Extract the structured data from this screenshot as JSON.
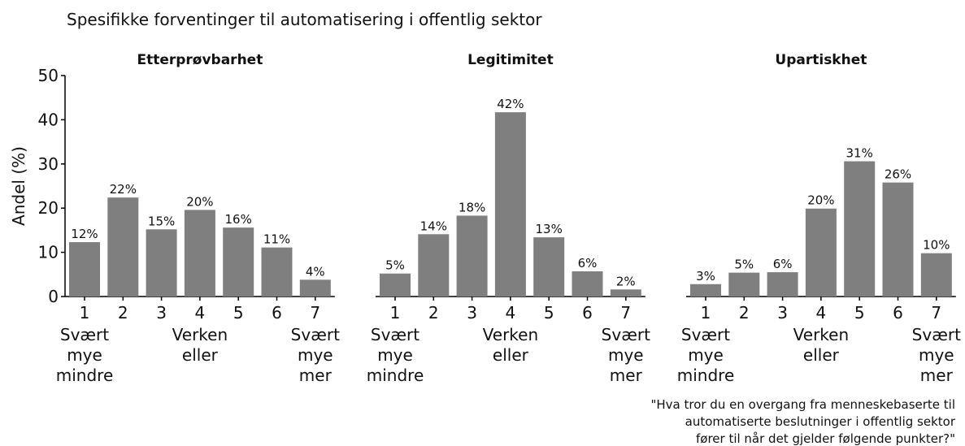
{
  "title": "Spesifikke forventinger til automatisering i offentlig sektor",
  "caption": "\"Hva tror du en overgang fra menneskebaserte til\nautomatiserte beslutninger i offentlig sektor\nfører til når det gjelder følgende punkter?\"",
  "chart_data": [
    {
      "type": "bar",
      "title": "Etterprøvbarhet",
      "y_label": "Andel (%)",
      "color": "#7f7f7f",
      "categories": [
        "1",
        "2",
        "3",
        "4",
        "5",
        "6",
        "7"
      ],
      "category_notes": [
        "Svært\nmye\nmindre",
        null,
        null,
        "Verken\neller",
        null,
        null,
        "Svært\nmye\nmer"
      ],
      "values": [
        12.3,
        22.4,
        15.2,
        19.6,
        15.6,
        11.1,
        3.8
      ],
      "value_labels": [
        "12%",
        "22%",
        "15%",
        "20%",
        "16%",
        "11%",
        "4%"
      ],
      "ylim": [
        0,
        50
      ],
      "yticks": [
        0,
        10,
        20,
        30,
        40,
        50
      ]
    },
    {
      "type": "bar",
      "title": "Legitimitet",
      "color": "#7f7f7f",
      "categories": [
        "1",
        "2",
        "3",
        "4",
        "5",
        "6",
        "7"
      ],
      "category_notes": [
        "Svært\nmye\nmindre",
        null,
        null,
        "Verken\neller",
        null,
        null,
        "Svært\nmye\nmer"
      ],
      "values": [
        5.2,
        14.1,
        18.3,
        41.7,
        13.4,
        5.7,
        1.6
      ],
      "value_labels": [
        "5%",
        "14%",
        "18%",
        "42%",
        "13%",
        "6%",
        "2%"
      ],
      "ylim": [
        0,
        50
      ]
    },
    {
      "type": "bar",
      "title": "Upartiskhet",
      "color": "#7f7f7f",
      "categories": [
        "1",
        "2",
        "3",
        "4",
        "5",
        "6",
        "7"
      ],
      "category_notes": [
        "Svært\nmye\nmindre",
        null,
        null,
        "Verken\neller",
        null,
        null,
        "Svært\nmye\nmer"
      ],
      "values": [
        2.8,
        5.4,
        5.5,
        19.9,
        30.6,
        25.8,
        9.8
      ],
      "value_labels": [
        "3%",
        "5%",
        "6%",
        "20%",
        "31%",
        "26%",
        "10%"
      ],
      "ylim": [
        0,
        50
      ]
    }
  ]
}
